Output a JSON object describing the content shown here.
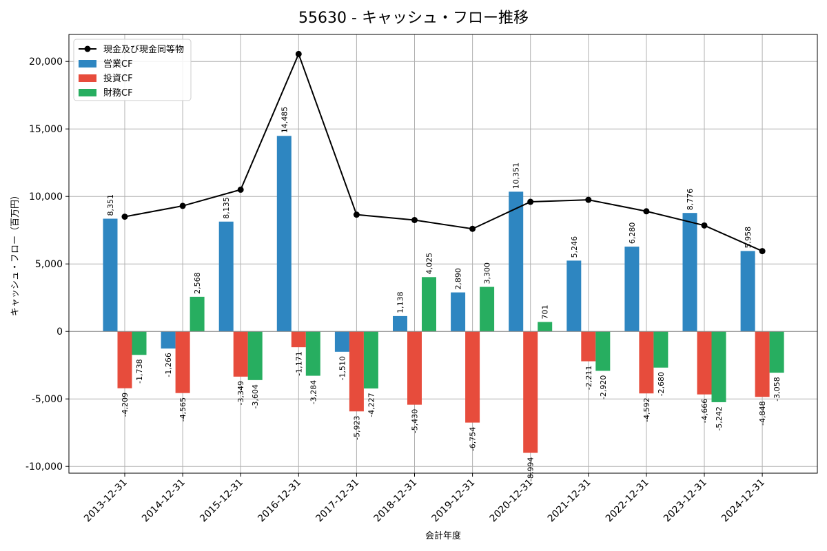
{
  "chart_data": {
    "type": "bar",
    "title": "55630 - キャッシュ・フロー推移",
    "xlabel": "会計年度",
    "ylabel": "キャッシュ・フロー（百万円）",
    "ylim": [
      -10500,
      22000
    ],
    "yticks": [
      -10000,
      -5000,
      0,
      5000,
      10000,
      15000,
      20000
    ],
    "ytick_labels": [
      "-10,000",
      "-5,000",
      "0",
      "5,000",
      "10,000",
      "15,000",
      "20,000"
    ],
    "grid": true,
    "legend_position": "top-left",
    "categories": [
      "2013-12-31",
      "2014-12-31",
      "2015-12-31",
      "2016-12-31",
      "2017-12-31",
      "2018-12-31",
      "2019-12-31",
      "2020-12-31",
      "2021-12-31",
      "2022-12-31",
      "2023-12-31",
      "2024-12-31"
    ],
    "series": [
      {
        "name": "営業CF",
        "kind": "bar",
        "color": "#2e86c1",
        "values": [
          8351,
          -1266,
          8135,
          14485,
          -1510,
          1138,
          2890,
          10351,
          5246,
          6280,
          8776,
          5958
        ],
        "labels": [
          "8,351",
          "-1,266",
          "8,135",
          "14,485",
          "-1,510",
          "1,138",
          "2,890",
          "10,351",
          "5,246",
          "6,280",
          "8,776",
          "5,958"
        ]
      },
      {
        "name": "投資CF",
        "kind": "bar",
        "color": "#e74c3c",
        "values": [
          -4209,
          -4565,
          -3349,
          -1171,
          -5923,
          -5430,
          -6754,
          -8994,
          -2211,
          -4592,
          -4666,
          -4848
        ],
        "labels": [
          "-4,209",
          "-4,565",
          "-3,349",
          "-1,171",
          "-5,923",
          "-5,430",
          "-6,754",
          "-8,994",
          "-2,211",
          "-4,592",
          "-4,666",
          "-4,848"
        ]
      },
      {
        "name": "財務CF",
        "kind": "bar",
        "color": "#27ae60",
        "values": [
          -1738,
          2568,
          -3604,
          -3284,
          -4227,
          4025,
          3300,
          701,
          -2920,
          -2680,
          -5242,
          -3058
        ],
        "labels": [
          "-1,738",
          "2,568",
          "-3,604",
          "-3,284",
          "-4,227",
          "4,025",
          "3,300",
          "701",
          "-2,920",
          "-2,680",
          "-5,242",
          "-3,058"
        ]
      },
      {
        "name": "現金及び現金同等物",
        "kind": "line",
        "color": "#000000",
        "values": [
          8500,
          9300,
          10500,
          20550,
          8650,
          8250,
          7600,
          9600,
          9750,
          8900,
          7850,
          5950
        ]
      }
    ]
  }
}
